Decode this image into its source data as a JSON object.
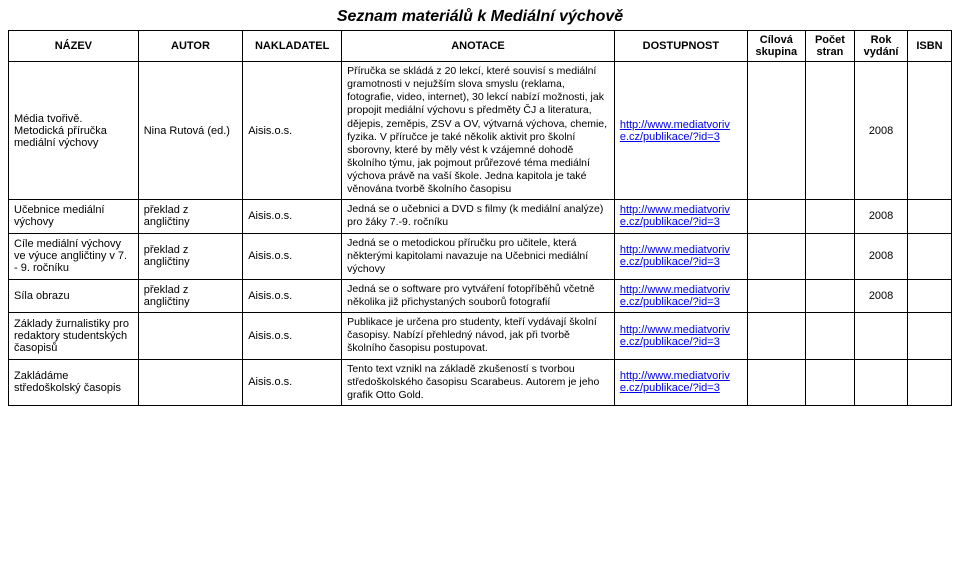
{
  "title": "Seznam materiálů k Mediální výchově",
  "columns": {
    "name": "NÁZEV",
    "author": "AUTOR",
    "publisher": "NAKLADATEL",
    "annotation": "ANOTACE",
    "availability": "DOSTUPNOST",
    "group": "Cílová skupina",
    "pages": "Počet stran",
    "year": "Rok vydání",
    "isbn": "ISBN"
  },
  "rows": [
    {
      "name": "Média tvořivě. Metodická příručka mediální výchovy",
      "author": "Nina Rutová (ed.)",
      "publisher": "Aisis.o.s.",
      "annotation": "Příručka se skládá z 20 lekcí, které souvisí s mediální gramotnosti v nejužším slova smyslu (reklama, fotografie, video, internet), 30 lekcí nabízí možnosti, jak propojit mediální výchovu s předměty ČJ a literatura, dějepis, zeměpis, ZSV a OV, výtvarná výchova, chemie, fyzika. V příručce je také několik aktivit pro školní sborovny, které by měly vést k vzájemné dohodě školního týmu, jak pojmout průřezové téma mediální výchova právě na vaší škole. Jedna kapitola je také věnována tvorbě školního časopisu",
      "avail_a": "http://www.mediatvoriv",
      "avail_b": "e.cz/publikace/?id=3",
      "year": "2008"
    },
    {
      "name": "Učebnice mediální výchovy",
      "author": "překlad z angličtiny",
      "publisher": "Aisis.o.s.",
      "annotation": "Jedná se o učebnici a DVD s filmy (k mediální analýze) pro žáky 7.-9. ročníku",
      "avail_a": "http://www.mediatvoriv",
      "avail_b": "e.cz/publikace/?id=3",
      "year": "2008"
    },
    {
      "name": "Cíle mediální výchovy ve výuce angličtiny v 7. - 9. ročníku",
      "author": "překlad z angličtiny",
      "publisher": "Aisis.o.s.",
      "annotation": "Jedná se o metodickou příručku pro učitele, která některými kapitolami navazuje na Učebnici mediální výchovy",
      "avail_a": "http://www.mediatvoriv",
      "avail_b": "e.cz/publikace/?id=3",
      "year": "2008"
    },
    {
      "name": "Síla obrazu",
      "author": "překlad z angličtiny",
      "publisher": "Aisis.o.s.",
      "annotation": "Jedná se o software pro vytváření fotopříběhů včetně několika již přichystaných souborů fotografií",
      "avail_a": "http://www.mediatvoriv",
      "avail_b": "e.cz/publikace/?id=3",
      "year": "2008"
    },
    {
      "name": "Základy žurnalistiky pro redaktory studentských časopisů",
      "author": "",
      "publisher": "Aisis.o.s.",
      "annotation": "Publikace je určena pro studenty, kteří vydávají školní časopisy. Nabízí přehledný návod, jak při tvorbě školního časopisu postupovat.",
      "avail_a": "http://www.mediatvoriv",
      "avail_b": "e.cz/publikace/?id=3",
      "year": ""
    },
    {
      "name": "Zakládáme středoškolský časopis",
      "author": "",
      "publisher": "Aisis.o.s.",
      "annotation": "Tento text vznikl na základě zkušeností s tvorbou středoškolského časopisu Scarabeus. Autorem je jeho grafik Otto Gold.",
      "avail_a": "http://www.mediatvoriv",
      "avail_b": "e.cz/publikace/?id=3",
      "year": ""
    }
  ],
  "colors": {
    "link": "#0000ee",
    "border": "#000000",
    "background": "#ffffff"
  }
}
